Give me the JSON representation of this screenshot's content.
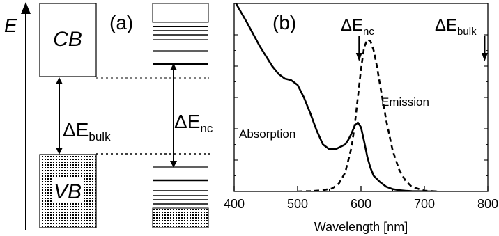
{
  "panel_a": {
    "panel_label": "(a)",
    "energy_axis_label": "E",
    "cb_label": "CB",
    "vb_label": "VB",
    "gap_bulk": {
      "symbol": "ΔE",
      "subscript": "bulk"
    },
    "gap_nc": {
      "symbol": "ΔE",
      "subscript": "nc"
    }
  },
  "panel_b": {
    "panel_label": "(b)",
    "marker_nc": {
      "symbol": "ΔE",
      "subscript": "nc"
    },
    "marker_bulk": {
      "symbol": "ΔE",
      "subscript": "bulk"
    },
    "absorption_label": "Absorption",
    "emission_label": "Emission"
  },
  "chart_data": {
    "type": "line",
    "xlabel": "Wavelength [nm]",
    "ylabel": "",
    "xlim": [
      400,
      800
    ],
    "ylim": [
      0,
      1.2
    ],
    "x_ticks": [
      400,
      500,
      600,
      700,
      800
    ],
    "grid": false,
    "series": [
      {
        "name": "Absorption",
        "style": "solid",
        "x": [
          400,
          420,
          440,
          460,
          470,
          480,
          490,
          500,
          510,
          520,
          530,
          540,
          550,
          560,
          570,
          575,
          580,
          585,
          590,
          595,
          600,
          605,
          610,
          615,
          620,
          630,
          640,
          650,
          660,
          670,
          680,
          700,
          720
        ],
        "y": [
          1.22,
          1.08,
          0.93,
          0.8,
          0.75,
          0.72,
          0.71,
          0.68,
          0.6,
          0.5,
          0.39,
          0.3,
          0.27,
          0.27,
          0.29,
          0.3,
          0.33,
          0.37,
          0.42,
          0.44,
          0.41,
          0.32,
          0.22,
          0.15,
          0.1,
          0.06,
          0.03,
          0.015,
          0.008,
          0.004,
          0.002,
          0.001,
          0.0
        ]
      },
      {
        "name": "Emission",
        "style": "dashed",
        "x": [
          500,
          520,
          540,
          555,
          565,
          575,
          585,
          590,
          595,
          600,
          605,
          610,
          615,
          620,
          625,
          630,
          640,
          650,
          660,
          670,
          680,
          700,
          720
        ],
        "y": [
          0.0,
          0.002,
          0.008,
          0.02,
          0.05,
          0.12,
          0.28,
          0.42,
          0.6,
          0.78,
          0.92,
          0.97,
          0.96,
          0.9,
          0.8,
          0.68,
          0.45,
          0.26,
          0.14,
          0.07,
          0.03,
          0.005,
          0.0
        ]
      }
    ],
    "markers": [
      {
        "name": "ΔE nc",
        "x": 597
      },
      {
        "name": "ΔE bulk",
        "x": 795
      }
    ]
  }
}
